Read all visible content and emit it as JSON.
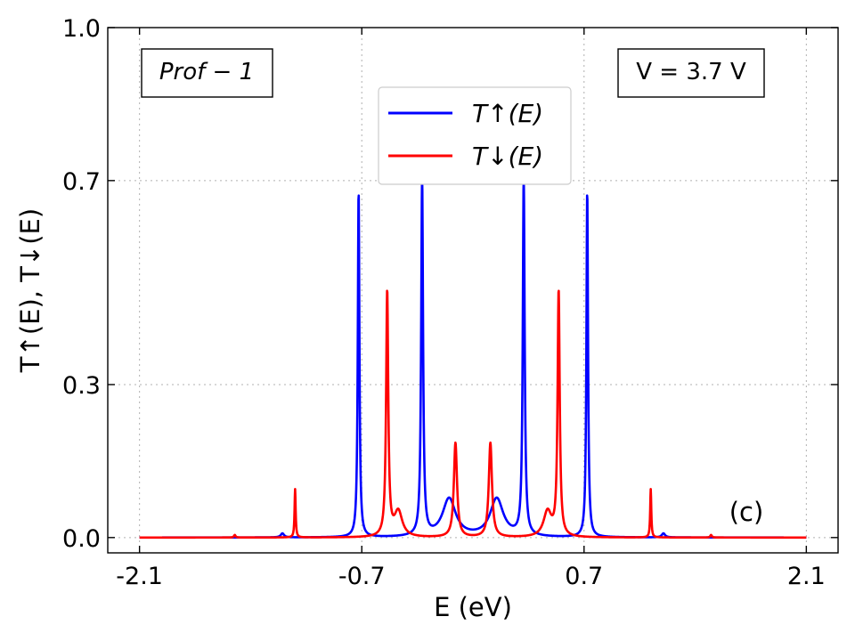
{
  "chart_data": {
    "type": "line",
    "title": "",
    "xlabel": "E (eV)",
    "ylabel": "T↑(E),  T↓(E)",
    "xlim": [
      -2.3,
      2.3
    ],
    "ylim": [
      -0.03,
      1.0
    ],
    "xticks": [
      -2.1,
      -0.7,
      0.7,
      2.1
    ],
    "xtick_labels": [
      "-2.1",
      "-0.7",
      "0.7",
      "2.1"
    ],
    "yticks": [
      0.0,
      0.3,
      0.7,
      1.0
    ],
    "ytick_labels": [
      "0.0",
      "0.3",
      "0.7",
      "1.0"
    ],
    "grid": true,
    "legend_position": "top-center",
    "annotations": {
      "profile": "Prof − 1",
      "voltage": "V = 3.7 V",
      "panel": "(c)"
    },
    "x_range": [
      -2.1,
      2.1
    ],
    "series": [
      {
        "name": "T↑(E)",
        "color": "#0000ff",
        "peaks": [
          {
            "E": -1.2,
            "T": 0.008,
            "w": 0.012
          },
          {
            "E": -0.72,
            "T": 0.68,
            "w": 0.006
          },
          {
            "E": -0.32,
            "T": 0.705,
            "w": 0.007
          },
          {
            "E": -0.15,
            "T": 0.075,
            "w": 0.05
          },
          {
            "E": 0.15,
            "T": 0.075,
            "w": 0.05
          },
          {
            "E": 0.32,
            "T": 0.705,
            "w": 0.007
          },
          {
            "E": 0.72,
            "T": 0.68,
            "w": 0.006
          },
          {
            "E": 1.2,
            "T": 0.008,
            "w": 0.012
          }
        ]
      },
      {
        "name": "T↓(E)",
        "color": "#ff0000",
        "peaks": [
          {
            "E": -1.5,
            "T": 0.005,
            "w": 0.006
          },
          {
            "E": -1.12,
            "T": 0.095,
            "w": 0.004
          },
          {
            "E": -0.54,
            "T": 0.48,
            "w": 0.008
          },
          {
            "E": -0.47,
            "T": 0.05,
            "w": 0.03
          },
          {
            "E": -0.11,
            "T": 0.185,
            "w": 0.012
          },
          {
            "E": 0.11,
            "T": 0.185,
            "w": 0.012
          },
          {
            "E": 0.47,
            "T": 0.05,
            "w": 0.03
          },
          {
            "E": 0.54,
            "T": 0.48,
            "w": 0.008
          },
          {
            "E": 1.12,
            "T": 0.095,
            "w": 0.004
          },
          {
            "E": 1.5,
            "T": 0.005,
            "w": 0.006
          }
        ]
      }
    ]
  }
}
